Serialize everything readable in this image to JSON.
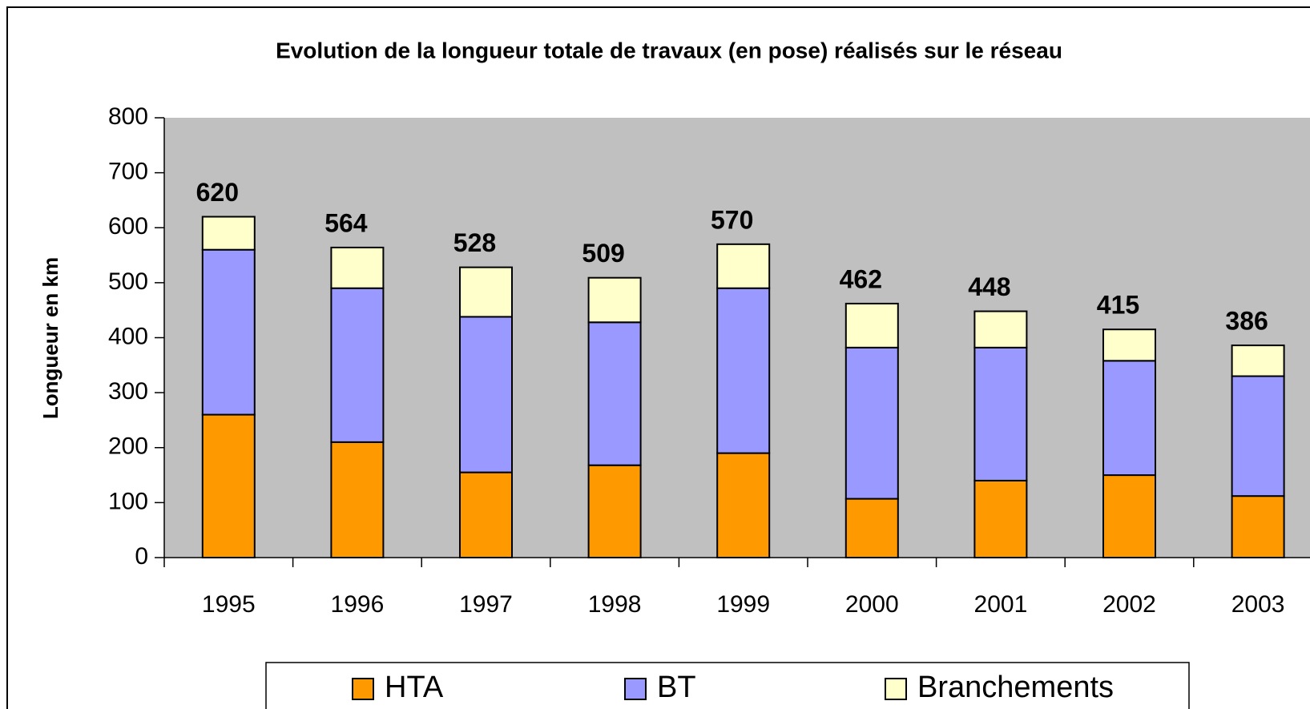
{
  "chart_data": {
    "type": "bar",
    "stacked": true,
    "title": "Evolution de la longueur totale de travaux (en pose) réalisés sur le réseau",
    "y_label": "Longueur en km",
    "categories": [
      "1995",
      "1996",
      "1997",
      "1998",
      "1999",
      "2000",
      "2001",
      "2002",
      "2003"
    ],
    "series": [
      {
        "name": "HTA",
        "color": "#ff9900",
        "values": [
          260,
          210,
          155,
          168,
          190,
          107,
          140,
          150,
          112
        ]
      },
      {
        "name": "BT",
        "color": "#9999ff",
        "values": [
          300,
          280,
          283,
          260,
          300,
          275,
          242,
          208,
          218
        ]
      },
      {
        "name": "Branchements",
        "color": "#ffffcc",
        "values": [
          60,
          74,
          90,
          81,
          80,
          80,
          66,
          57,
          56
        ]
      }
    ],
    "totals": [
      620,
      564,
      528,
      509,
      570,
      462,
      448,
      415,
      386
    ],
    "ylim": [
      0,
      800
    ],
    "yticks": [
      0,
      100,
      200,
      300,
      400,
      500,
      600,
      700,
      800
    ],
    "plot_background": "#c0c0c0",
    "legend": "bottom"
  }
}
